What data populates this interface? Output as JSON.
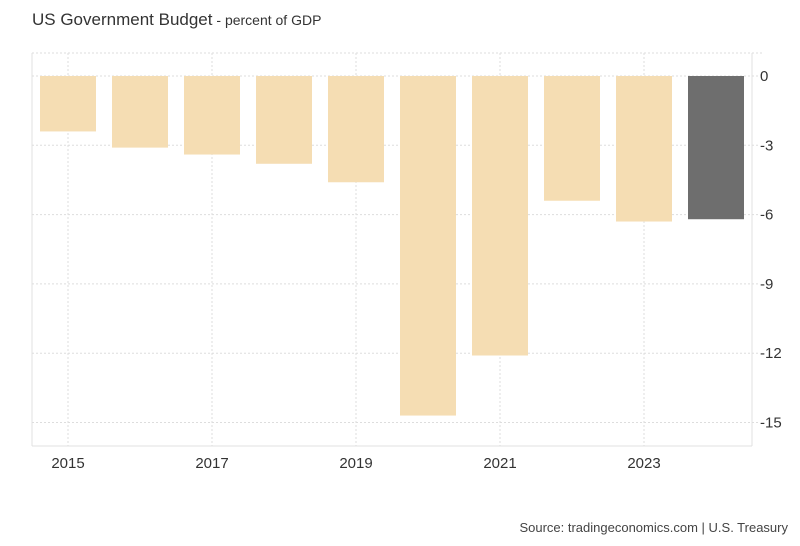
{
  "chart_data": {
    "type": "bar",
    "title": "US Government Budget",
    "subtitle": "percent of GDP",
    "xlabel": "",
    "ylabel": "",
    "categories": [
      "2015",
      "2016",
      "2017",
      "2018",
      "2019",
      "2020",
      "2021",
      "2022",
      "2023",
      "2024"
    ],
    "values": [
      -2.4,
      -3.1,
      -3.4,
      -3.8,
      -4.6,
      -14.7,
      -12.1,
      -5.4,
      -6.3,
      -6.2
    ],
    "highlight_index": 9,
    "colors": {
      "bar": "#F5DDB3",
      "highlight": "#6E6E6E",
      "grid": "#DDDDDD",
      "axis": "#E0E0E0"
    },
    "ylim": [
      -16,
      1
    ],
    "y_ticks": [
      0,
      -3,
      -6,
      -9,
      -12,
      -15
    ],
    "x_tick_labels": [
      "2015",
      "2017",
      "2019",
      "2021",
      "2023"
    ],
    "y_axis_side": "right",
    "grid": true,
    "legend": "none"
  },
  "source": "Source: tradingeconomics.com | U.S. Treasury"
}
